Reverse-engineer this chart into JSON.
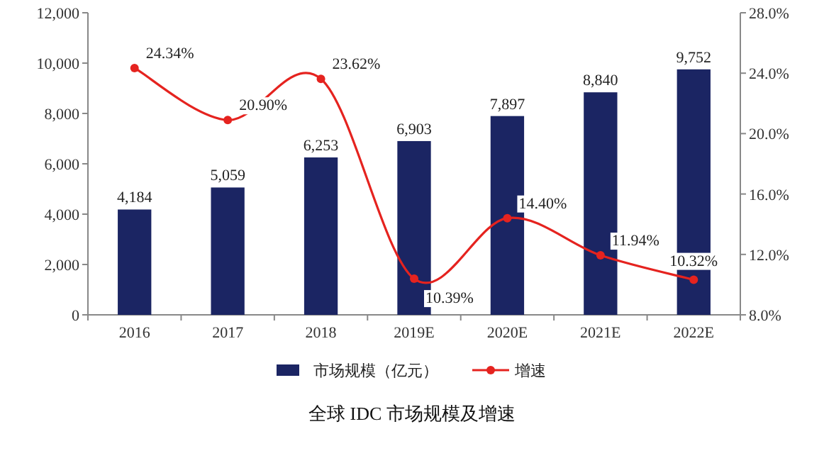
{
  "chart_data": {
    "type": "bar",
    "title": "全球 IDC 市场规模及增速",
    "categories": [
      "2016",
      "2017",
      "2018",
      "2019E",
      "2020E",
      "2021E",
      "2022E"
    ],
    "series": [
      {
        "name": "市场规模（亿元）",
        "color": "#1b2563",
        "values": [
          4184,
          5059,
          6253,
          6903,
          7897,
          8840,
          9752
        ],
        "value_labels": [
          "4,184",
          "5,059",
          "6,253",
          "6,903",
          "7,897",
          "8,840",
          "9,752"
        ]
      },
      {
        "name": "增速",
        "type": "line",
        "axis": "y2",
        "color": "#e5231f",
        "values": [
          24.34,
          20.9,
          23.62,
          10.39,
          14.4,
          11.94,
          10.32
        ],
        "value_labels": [
          "24.34%",
          "20.90%",
          "23.62%",
          "10.39%",
          "14.40%",
          "11.94%",
          "10.32%"
        ]
      }
    ],
    "ylim": [
      0,
      12000
    ],
    "yticks": [
      0,
      {
        "value": 2000,
        "label": "2,000"
      },
      {
        "value": 4000,
        "label": "4,000"
      },
      {
        "value": 6000,
        "label": "6,000"
      },
      {
        "value": 8000,
        "label": "8,000"
      },
      {
        "value": 10000,
        "label": "10,000"
      },
      {
        "value": 12000,
        "label": "12,000"
      }
    ],
    "y2lim": [
      8,
      28
    ],
    "y2ticks": [
      {
        "value": 8,
        "label": "8.0%"
      },
      {
        "value": 12,
        "label": "12.0%"
      },
      {
        "value": 16,
        "label": "16.0%"
      },
      {
        "value": 20,
        "label": "20.0%"
      },
      {
        "value": 24,
        "label": "24.0%"
      },
      {
        "value": 28,
        "label": "28.0%"
      }
    ],
    "marker": "circle",
    "grid": false,
    "legend": "bottom"
  }
}
